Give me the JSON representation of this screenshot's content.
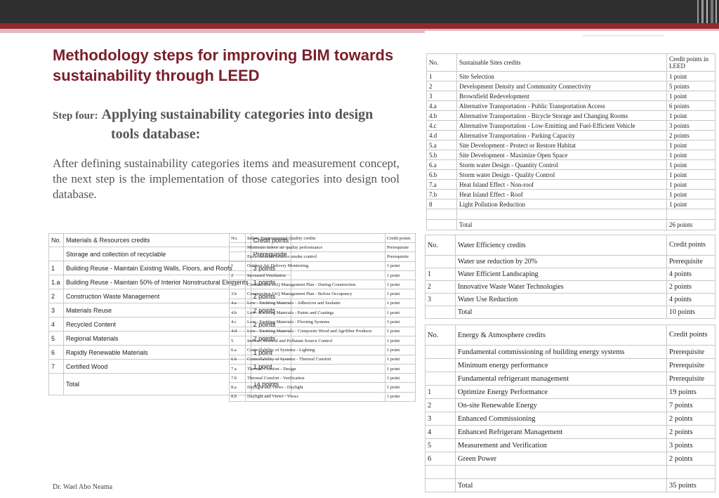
{
  "slide": {
    "title": "Methodology steps for improving BIM towards sustainability through LEED",
    "step_label": "Step four:",
    "step_text_line1": "Applying sustainability categories into design",
    "step_text_line2": "tools database:",
    "body": "After defining sustainability categories items and measurement concept, the next step is the implementation of those categories into design tool database.",
    "footer": "Dr. Wael Abo Neama"
  },
  "materials_table": {
    "headers": [
      "No.",
      "Materials & Resources credits",
      "Credit points"
    ],
    "rows": [
      [
        "",
        "Storage and collection of recyclable",
        "Prerequisite"
      ],
      [
        "1",
        "Building Reuse - Maintain Existing Walls, Floors, and Roofs",
        "3 points"
      ],
      [
        "1.a",
        "Building Reuse - Maintain 50% of Interior Nonstructural Elements",
        "1 points"
      ],
      [
        "2",
        "Construction Waste Management",
        "2 points"
      ],
      [
        "3",
        "Materials Reuse",
        "2 points"
      ],
      [
        "4",
        "Recycled Content",
        "2 points"
      ],
      [
        "5",
        "Regional Materials",
        "2 points"
      ],
      [
        "6",
        "Rapidly Renewable Materials",
        "1 point"
      ],
      [
        "7",
        "Certified Wood",
        "1 point"
      ]
    ],
    "total": [
      "",
      "Total",
      "14 points"
    ]
  },
  "ieq_table": {
    "headers": [
      "No.",
      "Indoor Environmental Quality credits",
      "Credit points"
    ],
    "rows": [
      [
        "",
        "Minimum indoor air quality performance",
        "Prerequisite"
      ],
      [
        "",
        "Environmental tobacco smoke control",
        "Prerequisite"
      ],
      [
        "1",
        "Outdoor Air Delivery Monitoring",
        "1 point"
      ],
      [
        "2",
        "Increased Ventilation",
        "1 point"
      ],
      [
        "3.a",
        "Construction IAQ Management Plan - During Construction",
        "1 point"
      ],
      [
        "3.b",
        "Construction IAQ Management Plan - Before Occupancy",
        "1 point"
      ],
      [
        "4.a",
        "Low - Emitting Materials - Adhesives and Sealants",
        "1 point"
      ],
      [
        "4.b",
        "Low - Emitting Materials - Paints and Coatings",
        "1 point"
      ],
      [
        "4.c",
        "Low - Emitting Materials - Flooring Systems",
        "1 point"
      ],
      [
        "4.d",
        "Low - Emitting Materials - Composite Wood and Agrifiber Products",
        "1 point"
      ],
      [
        "5",
        "Indoor Chemical and Pollutant Source Control",
        "1 point"
      ],
      [
        "6.a",
        "Controllability of Systems - Lighting",
        "1 point"
      ],
      [
        "6.b",
        "Controllability of Systems - Thermal Comfort",
        "1 point"
      ],
      [
        "7.a",
        "Thermal Comfort - Design",
        "1 point"
      ],
      [
        "7.b",
        "Thermal Comfort - Verification",
        "1 point"
      ],
      [
        "8.a",
        "Daylight and Views - Daylight",
        "1 point"
      ],
      [
        "8.b",
        "Daylight and Views - Views",
        "1 point"
      ]
    ]
  },
  "sites_table": {
    "headers": [
      "No.",
      "Sustainable Sites credits",
      "Credit points in LEED"
    ],
    "rows": [
      [
        "1",
        "Site Selection",
        "1 point"
      ],
      [
        "2",
        "Development Density and Community Connectivity",
        "5 points"
      ],
      [
        "3",
        "Brownfield Redevelopment",
        "1 point"
      ],
      [
        "4.a",
        "Alternative Transportation - Public Transportation Access",
        "6 points"
      ],
      [
        "4.b",
        "Alternative Transportation - Bicycle Storage and Changing Rooms",
        "1 point"
      ],
      [
        "4.c",
        "Alternative Transportation - Low-Emitting and Fuel-Efficient Vehicle",
        "3 points"
      ],
      [
        "4.d",
        "Alternative Transportation - Parking Capacity",
        "2 points"
      ],
      [
        "5.a",
        "Site Development - Protect or Restore Habitat",
        "1 point"
      ],
      [
        "5.b",
        "Site Development - Maximize Open Space",
        "1 point"
      ],
      [
        "6.a",
        "Storm water Design - Quantity Control",
        "1 point"
      ],
      [
        "6.b",
        "Storm water Design - Quality Control",
        "1 point"
      ],
      [
        "7.a",
        "Heat Island Effect - Non-roof",
        "1 point"
      ],
      [
        "7.b",
        "Heat Island Effect - Roof",
        "1 point"
      ],
      [
        "8",
        "Light Pollution Reduction",
        "1 point"
      ]
    ],
    "total": [
      "",
      "Total",
      "26 points"
    ]
  },
  "water_table": {
    "headers": [
      "No.",
      "Water Efficiency credits",
      "Credit points"
    ],
    "rows": [
      [
        "",
        "Water use reduction by 20%",
        "Prerequisite"
      ],
      [
        "1",
        "Water Efficient Landscaping",
        "4 points"
      ],
      [
        "2",
        "Innovative Waste Water Technologies",
        "2 points"
      ],
      [
        "3",
        "Water Use Reduction",
        "4 points"
      ]
    ],
    "total": [
      "",
      "Total",
      "10 points"
    ]
  },
  "energy_table": {
    "headers": [
      "No.",
      "Energy & Atmosphere credits",
      "Credit points"
    ],
    "rows": [
      [
        "",
        "Fundamental commissioning of building energy systems",
        "Prerequisite"
      ],
      [
        "",
        "Minimum energy performance",
        "Prerequisite"
      ],
      [
        "",
        "Fundamental refrigerant management",
        "Prerequisite"
      ],
      [
        "1",
        "Optimize Energy Performance",
        "19 points"
      ],
      [
        "2",
        "On-site Renewable Energy",
        "7 points"
      ],
      [
        "3",
        "Enhanced Commissioning",
        "2 points"
      ],
      [
        "4",
        "Enhanced Refrigerant Management",
        "2 points"
      ],
      [
        "5",
        "Measurement and Verification",
        "3 points"
      ],
      [
        "6",
        "Green Power",
        "2 points"
      ]
    ],
    "total": [
      "",
      "Total",
      "35 points"
    ]
  }
}
